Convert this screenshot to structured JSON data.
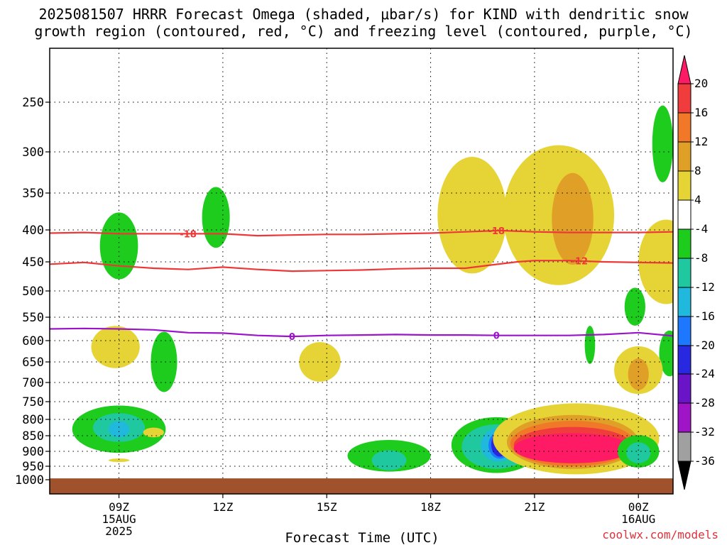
{
  "title_line1": "2025081507 HRRR Forecast Omega (shaded, μbar/s) for KIND with dendritic snow",
  "title_line2": "growth region (contoured, red, °C) and freezing level (contoured, purple, °C)",
  "x_axis_label": "Forecast Time (UTC)",
  "credit": "coolwx.com/models",
  "colors": {
    "dgz": "#ee3838",
    "freezing": "#9a14c8",
    "ground": "#a0522d"
  },
  "chart_data": {
    "type": "heatmap",
    "x_range_hours_utc": [
      7,
      25
    ],
    "y_axis": {
      "label": "",
      "unit": "hPa",
      "ticks": [
        250,
        300,
        350,
        400,
        450,
        500,
        550,
        600,
        650,
        700,
        750,
        800,
        850,
        900,
        950,
        1000
      ],
      "range": [
        200,
        1020
      ]
    },
    "x_ticks": [
      {
        "hour": 9,
        "label": "09Z",
        "sub1": "15AUG",
        "sub2": "2025"
      },
      {
        "hour": 12,
        "label": "12Z",
        "sub1": "",
        "sub2": ""
      },
      {
        "hour": 15,
        "label": "15Z",
        "sub1": "",
        "sub2": ""
      },
      {
        "hour": 18,
        "label": "18Z",
        "sub1": "",
        "sub2": ""
      },
      {
        "hour": 21,
        "label": "21Z",
        "sub1": "",
        "sub2": ""
      },
      {
        "hour": 24,
        "label": "00Z",
        "sub1": "16AUG",
        "sub2": ""
      }
    ],
    "colorbar": {
      "labels": [
        "20",
        "16",
        "12",
        "8",
        "4",
        "-4",
        "-8",
        "-12",
        "-16",
        "-20",
        "-24",
        "-28",
        "-32",
        "-36"
      ],
      "colors": [
        "#ff1a66",
        "#f03c3c",
        "#f07828",
        "#e0a028",
        "#e6d436",
        "#ffffff",
        "#1ecc1e",
        "#20c8a0",
        "#20b8dc",
        "#1e78ff",
        "#2828e0",
        "#6a14c8",
        "#a014c8",
        "#a0a0a0",
        "#000000"
      ]
    },
    "contour_lines": [
      {
        "name": "-18",
        "color": "#ee3838",
        "label_hours": [
          11.0,
          19.9
        ],
        "points": [
          [
            7,
            405
          ],
          [
            8,
            404
          ],
          [
            9,
            406
          ],
          [
            10,
            406
          ],
          [
            11,
            406
          ],
          [
            12,
            406
          ],
          [
            13,
            409
          ],
          [
            14,
            408
          ],
          [
            15,
            407
          ],
          [
            16,
            407
          ],
          [
            17,
            406
          ],
          [
            18,
            405
          ],
          [
            19,
            403
          ],
          [
            20,
            401
          ],
          [
            21,
            403
          ],
          [
            22,
            404
          ],
          [
            23,
            404
          ],
          [
            24,
            404
          ],
          [
            25,
            403
          ]
        ]
      },
      {
        "name": "-12",
        "color": "#ee3838",
        "label_hours": [
          22.3
        ],
        "points": [
          [
            7,
            454
          ],
          [
            8,
            451
          ],
          [
            9,
            457
          ],
          [
            10,
            461
          ],
          [
            11,
            463
          ],
          [
            12,
            459
          ],
          [
            13,
            463
          ],
          [
            14,
            466
          ],
          [
            15,
            465
          ],
          [
            16,
            464
          ],
          [
            17,
            462
          ],
          [
            18,
            461
          ],
          [
            19,
            461
          ],
          [
            19.8,
            455
          ],
          [
            20.5,
            450
          ],
          [
            21,
            448
          ],
          [
            22,
            448
          ],
          [
            23,
            450
          ],
          [
            24,
            451
          ],
          [
            25,
            452
          ]
        ]
      },
      {
        "name": "0",
        "color": "#9a14c8",
        "label_hours": [
          14.0,
          19.9
        ],
        "points": [
          [
            7,
            575
          ],
          [
            8,
            574
          ],
          [
            9,
            575
          ],
          [
            10,
            577
          ],
          [
            11,
            583
          ],
          [
            12,
            584
          ],
          [
            13,
            589
          ],
          [
            14,
            591
          ],
          [
            15,
            589
          ],
          [
            16,
            588
          ],
          [
            17,
            587
          ],
          [
            18,
            588
          ],
          [
            19,
            588
          ],
          [
            20,
            589
          ],
          [
            21,
            589
          ],
          [
            22,
            589
          ],
          [
            23,
            587
          ],
          [
            24,
            583
          ],
          [
            25,
            590
          ]
        ]
      }
    ],
    "omega_regions": [
      {
        "value": -8,
        "center": [
          9.0,
          425
        ],
        "size": [
          0.55,
          55
        ]
      },
      {
        "value": -8,
        "center": [
          11.8,
          383
        ],
        "size": [
          0.4,
          45
        ]
      },
      {
        "value": 4,
        "center": [
          8.9,
          615
        ],
        "size": [
          0.7,
          50
        ]
      },
      {
        "value": -8,
        "center": [
          10.3,
          650
        ],
        "size": [
          0.38,
          75
        ]
      },
      {
        "value": 4,
        "center": [
          14.8,
          650
        ],
        "size": [
          0.6,
          48
        ]
      },
      {
        "value": -8,
        "center": [
          9.0,
          830
        ],
        "size": [
          1.35,
          75
        ]
      },
      {
        "value": -12,
        "center": [
          9.0,
          825
        ],
        "size": [
          0.75,
          45
        ]
      },
      {
        "value": -16,
        "center": [
          9.0,
          830
        ],
        "size": [
          0.3,
          25
        ]
      },
      {
        "value": 4,
        "center": [
          10.0,
          840
        ],
        "size": [
          0.3,
          15
        ]
      },
      {
        "value": 4,
        "center": [
          9.0,
          930
        ],
        "size": [
          0.3,
          6
        ]
      },
      {
        "value": -8,
        "center": [
          16.8,
          915
        ],
        "size": [
          1.2,
          55
        ]
      },
      {
        "value": -12,
        "center": [
          16.8,
          930
        ],
        "size": [
          0.5,
          35
        ]
      },
      {
        "value": -8,
        "center": [
          19.9,
          880
        ],
        "size": [
          1.3,
          95
        ]
      },
      {
        "value": -12,
        "center": [
          19.9,
          885
        ],
        "size": [
          1.0,
          75
        ]
      },
      {
        "value": -16,
        "center": [
          19.95,
          880
        ],
        "size": [
          0.5,
          55
        ]
      },
      {
        "value": -20,
        "center": [
          20.0,
          880
        ],
        "size": [
          0.33,
          45
        ]
      },
      {
        "value": -24,
        "center": [
          20.0,
          878
        ],
        "size": [
          0.25,
          40
        ]
      },
      {
        "value": -32,
        "center": [
          20.0,
          875
        ],
        "size": [
          0.1,
          18
        ]
      },
      {
        "value": -36,
        "center": [
          20.0,
          875
        ],
        "size": [
          0.04,
          7
        ]
      },
      {
        "value": 4,
        "center": [
          21.7,
          380
        ],
        "size": [
          1.6,
          110
        ]
      },
      {
        "value": 4,
        "center": [
          19.2,
          380
        ],
        "size": [
          1.0,
          90
        ]
      },
      {
        "value": 8,
        "center": [
          22.1,
          385
        ],
        "size": [
          0.6,
          70
        ]
      },
      {
        "value": 4,
        "center": [
          24.8,
          450
        ],
        "size": [
          0.8,
          75
        ]
      },
      {
        "value": 4,
        "center": [
          22.2,
          860
        ],
        "size": [
          2.4,
          120
        ]
      },
      {
        "value": 8,
        "center": [
          22.1,
          870
        ],
        "size": [
          1.9,
          90
        ]
      },
      {
        "value": 12,
        "center": [
          22.1,
          875
        ],
        "size": [
          1.8,
          75
        ]
      },
      {
        "value": 16,
        "center": [
          22.1,
          880
        ],
        "size": [
          1.7,
          60
        ]
      },
      {
        "value": 20,
        "center": [
          22.1,
          890
        ],
        "size": [
          1.7,
          50
        ]
      },
      {
        "value": -8,
        "center": [
          22.6,
          610
        ],
        "size": [
          0.15,
          45
        ]
      },
      {
        "value": -8,
        "center": [
          24.7,
          292
        ],
        "size": [
          0.3,
          45
        ]
      },
      {
        "value": -8,
        "center": [
          23.9,
          530
        ],
        "size": [
          0.3,
          38
        ]
      },
      {
        "value": -8,
        "center": [
          24.9,
          630
        ],
        "size": [
          0.3,
          55
        ]
      },
      {
        "value": 4,
        "center": [
          24.0,
          670
        ],
        "size": [
          0.7,
          60
        ]
      },
      {
        "value": 8,
        "center": [
          24.0,
          680
        ],
        "size": [
          0.3,
          40
        ]
      },
      {
        "value": -8,
        "center": [
          24.0,
          900
        ],
        "size": [
          0.6,
          55
        ]
      },
      {
        "value": -12,
        "center": [
          24.0,
          905
        ],
        "size": [
          0.35,
          35
        ]
      }
    ]
  }
}
